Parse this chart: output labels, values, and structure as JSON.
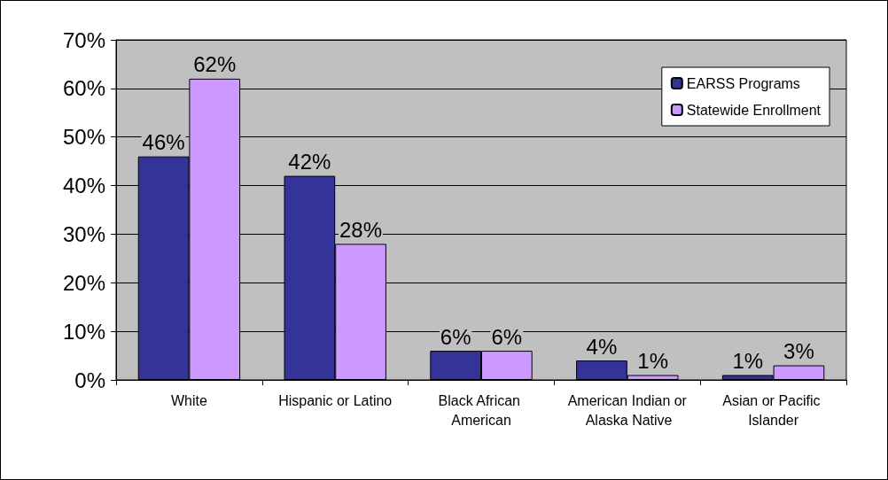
{
  "chart_data": {
    "type": "bar",
    "categories": [
      "White",
      "Hispanic or Latino",
      "Black African American",
      "American Indian or Alaska Native",
      "Asian or Pacific Islander"
    ],
    "series": [
      {
        "name": "EARSS Programs",
        "color": "#333399",
        "values": [
          46,
          42,
          6,
          4,
          1
        ],
        "value_labels": [
          "46%",
          "42%",
          "6%",
          "4%",
          "1%"
        ]
      },
      {
        "name": "Statewide Enrollment",
        "color": "#cc99ff",
        "values": [
          62,
          28,
          6,
          1,
          3
        ],
        "value_labels": [
          "62%",
          "28%",
          "6%",
          "1%",
          "3%"
        ]
      }
    ],
    "ylim": [
      0,
      70
    ],
    "yticks": [
      {
        "value": 0,
        "label": "0%"
      },
      {
        "value": 10,
        "label": "10%"
      },
      {
        "value": 20,
        "label": "20%"
      },
      {
        "value": 30,
        "label": "30%"
      },
      {
        "value": 40,
        "label": "40%"
      },
      {
        "value": 50,
        "label": "50%"
      },
      {
        "value": 60,
        "label": "60%"
      },
      {
        "value": 70,
        "label": "70%"
      }
    ],
    "grid": "y",
    "legend": "top right"
  }
}
